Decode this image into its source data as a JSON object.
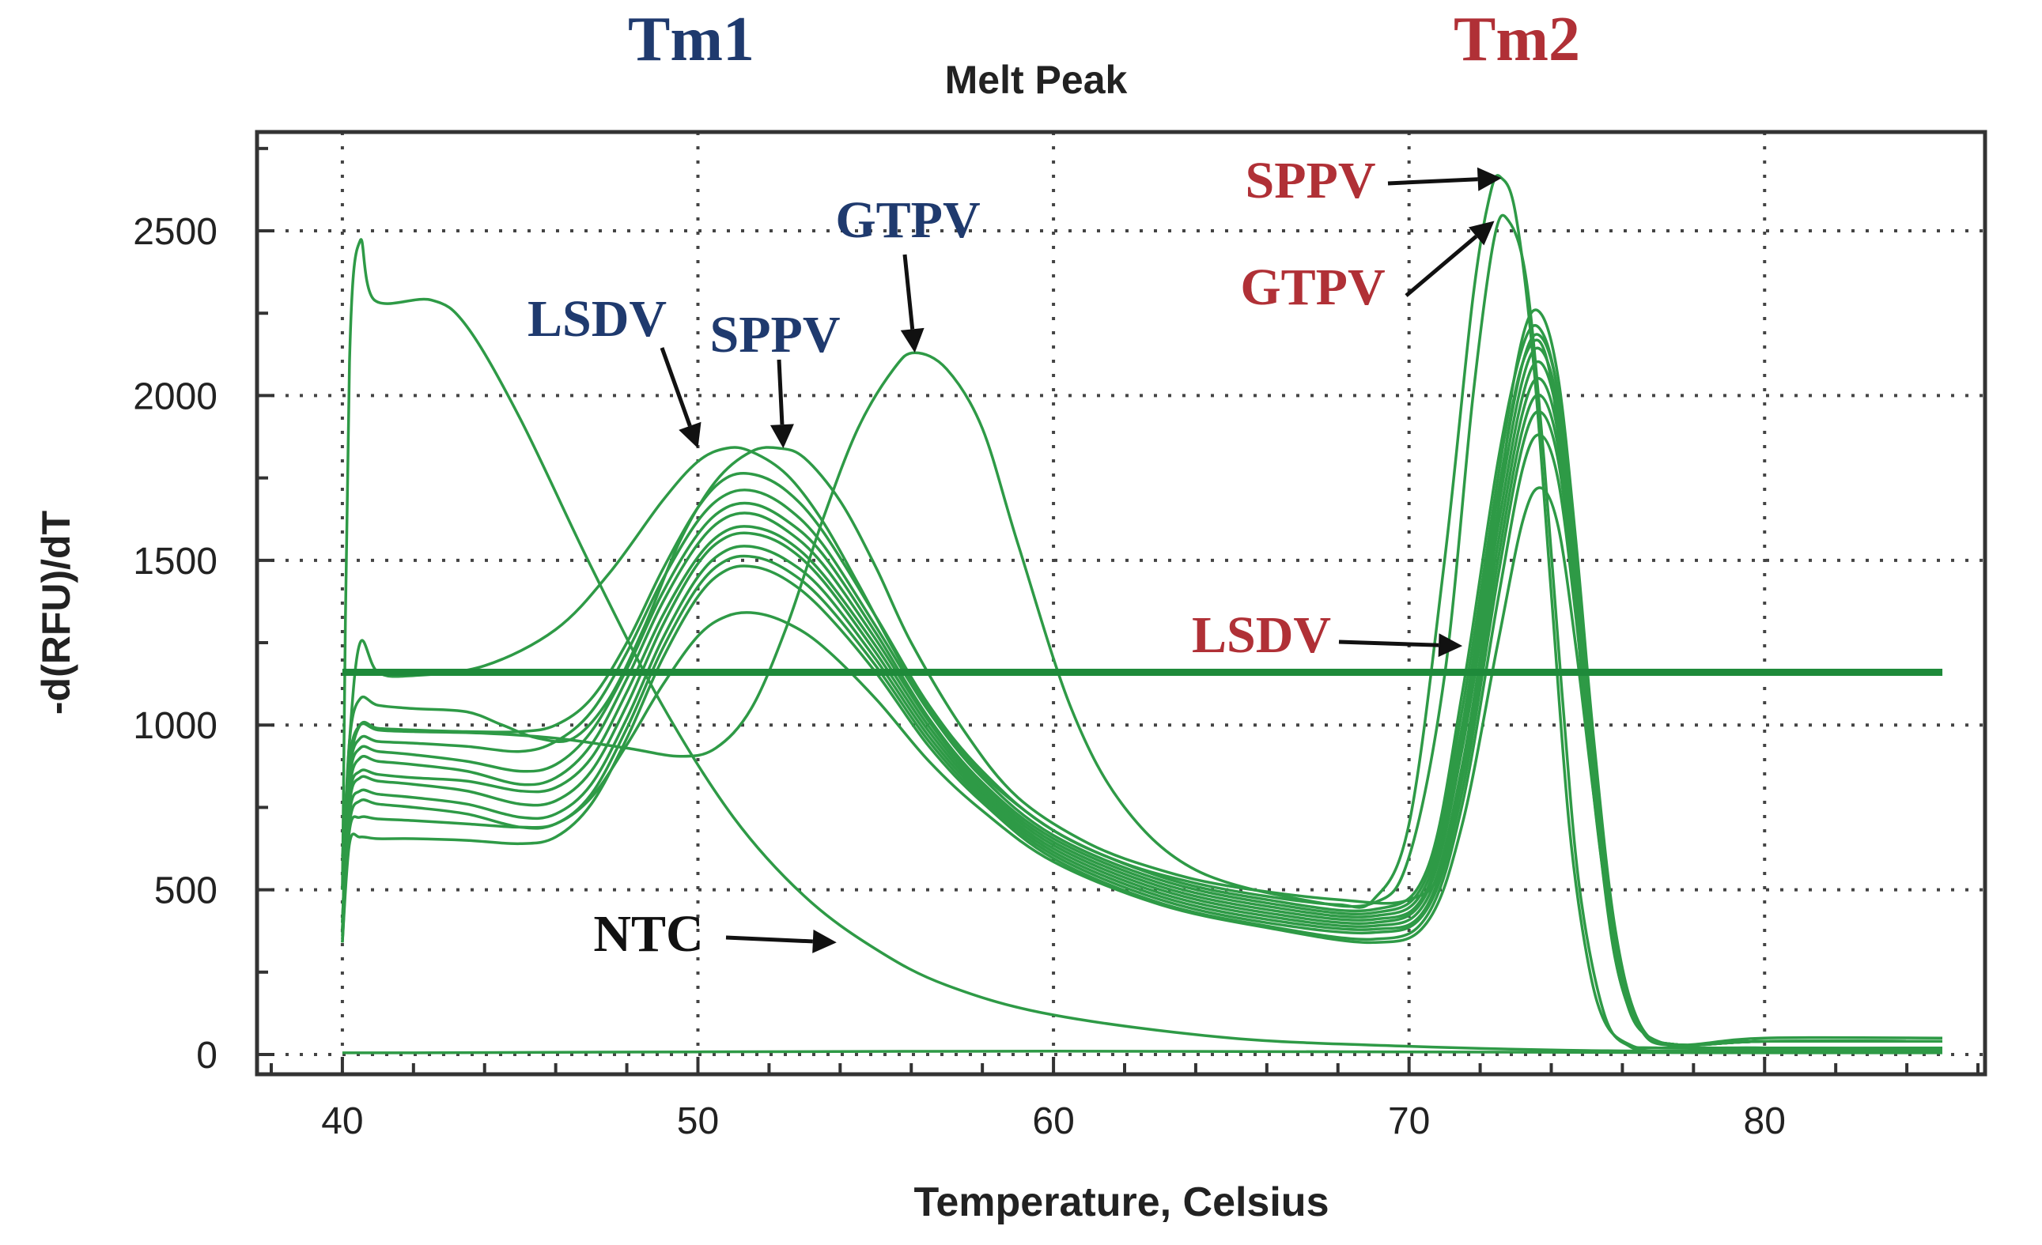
{
  "chart_data": {
    "type": "line",
    "title": "Melt Peak",
    "xlabel": "Temperature, Celsius",
    "ylabel": "-d(RFU)/dT",
    "xlim": [
      37.6,
      86.2
    ],
    "ylim": [
      -60,
      2800
    ],
    "xticks": [
      40,
      50,
      60,
      70,
      80
    ],
    "yticks": [
      0,
      500,
      1000,
      1500,
      2000,
      2500
    ],
    "xtick_labels": [
      "40",
      "50",
      "60",
      "70",
      "80"
    ],
    "ytick_labels": [
      "0",
      "500",
      "1000",
      "1500",
      "2000",
      "2500"
    ],
    "grid": true,
    "line_color": "#2e9a46",
    "threshold_color": "#1e8a3a",
    "threshold": 1160,
    "header_labels": [
      {
        "text": "Tm1",
        "color": "#1f3a6e"
      },
      {
        "text": "Tm2",
        "color": "#b03036"
      }
    ],
    "annotations": [
      {
        "text": "LSDV",
        "color": "#1f3a6e",
        "x": 50.0,
        "y": 1840
      },
      {
        "text": "SPPV",
        "color": "#1f3a6e",
        "x": 52.4,
        "y": 1840
      },
      {
        "text": "GTPV",
        "color": "#1f3a6e",
        "x": 56.1,
        "y": 2130
      },
      {
        "text": "NTC",
        "color": "#111111",
        "x": 53.9,
        "y": 340
      },
      {
        "text": "SPPV",
        "color": "#b03036",
        "x": 72.6,
        "y": 2660
      },
      {
        "text": "GTPV",
        "color": "#b03036",
        "x": 72.4,
        "y": 2530
      },
      {
        "text": "LSDV",
        "color": "#b03036",
        "x": 71.5,
        "y": 1240
      }
    ],
    "series": [
      {
        "x": [
          40.0,
          40.2,
          40.5,
          40.9,
          42.5,
          43.5,
          45.0,
          47.0,
          49.0,
          51.0,
          53.0,
          55.0,
          57.0,
          60.0,
          65.0,
          70.0,
          75.0,
          80.0,
          85.0
        ],
        "y": [
          500,
          2100,
          2470,
          2290,
          2290,
          2210,
          1930,
          1480,
          1060,
          720,
          480,
          320,
          210,
          120,
          50,
          25,
          12,
          10,
          10
        ]
      },
      {
        "x": [
          40.0,
          40.2,
          40.5,
          41.0,
          42.0,
          44.0,
          46.0,
          48.0,
          49.5,
          50.5,
          51.5,
          52.5,
          53.5,
          54.5,
          55.5,
          56.1,
          57.0,
          58.0,
          59.0,
          60.5,
          62.0,
          64.0,
          67.0,
          69.0,
          70.0,
          71.0,
          71.8,
          72.4,
          72.8,
          73.3,
          73.8,
          74.3,
          74.8,
          75.5,
          76.2,
          77.0,
          80.0,
          85.0
        ],
        "y": [
          600,
          900,
          1000,
          985,
          980,
          975,
          960,
          930,
          905,
          930,
          1050,
          1300,
          1620,
          1900,
          2080,
          2130,
          2080,
          1900,
          1550,
          1050,
          750,
          560,
          470,
          460,
          600,
          1150,
          2000,
          2480,
          2530,
          2350,
          1800,
          1100,
          500,
          120,
          25,
          20,
          20,
          18
        ]
      },
      {
        "x": [
          40.0,
          40.2,
          40.5,
          41.0,
          42.0,
          44.0,
          46.0,
          47.5,
          49.0,
          50.0,
          50.8,
          51.5,
          52.5,
          53.5,
          54.5,
          55.5,
          56.5,
          58.0,
          60.0,
          62.0,
          64.0,
          66.0,
          68.0,
          69.0,
          70.0,
          71.0,
          71.8,
          72.3,
          72.6,
          73.0,
          73.5,
          74.0,
          74.5,
          75.0,
          75.5,
          76.2,
          77.0,
          80.0,
          85.0
        ],
        "y": [
          500,
          950,
          1250,
          1160,
          1150,
          1180,
          1290,
          1460,
          1680,
          1800,
          1840,
          1830,
          1760,
          1620,
          1430,
          1230,
          1050,
          850,
          680,
          580,
          520,
          480,
          455,
          470,
          700,
          1500,
          2300,
          2620,
          2660,
          2550,
          2100,
          1400,
          700,
          300,
          100,
          30,
          20,
          18,
          15
        ]
      },
      {
        "x": [
          40.0,
          40.2,
          40.5,
          41.0,
          42.0,
          43.5,
          44.5,
          45.5,
          46.5,
          47.5,
          48.5,
          49.5,
          50.5,
          51.5,
          52.3,
          53.0,
          54.0,
          55.0,
          56.0,
          57.5,
          59.0,
          61.0,
          63.0,
          65.0,
          68.0,
          70.0,
          71.0,
          72.0,
          72.8,
          73.4,
          73.9,
          74.4,
          74.9,
          75.4,
          76.0,
          77.0,
          80.0,
          85.0
        ],
        "y": [
          500,
          950,
          1080,
          1060,
          1050,
          1040,
          1000,
          960,
          960,
          1080,
          1300,
          1560,
          1740,
          1830,
          1840,
          1810,
          1680,
          1480,
          1250,
          980,
          780,
          640,
          560,
          510,
          470,
          470,
          600,
          1200,
          1900,
          2150,
          2100,
          1700,
          1100,
          600,
          200,
          40,
          20,
          20
        ]
      },
      {
        "x": [
          40.0,
          40.2,
          40.5,
          41.0,
          42.0,
          43.5,
          45.0,
          46.0,
          47.0,
          48.0,
          49.0,
          50.0,
          50.8,
          51.6,
          52.5,
          53.5,
          55.0,
          56.5,
          58.0,
          60.0,
          63.0,
          66.0,
          69.0,
          70.5,
          71.5,
          72.5,
          73.2,
          73.7,
          74.2,
          74.7,
          75.2,
          75.8,
          76.5,
          77.5,
          80.0,
          85.0
        ],
        "y": [
          400,
          850,
          1000,
          990,
          985,
          980,
          980,
          1000,
          1080,
          1250,
          1470,
          1660,
          1750,
          1760,
          1710,
          1590,
          1330,
          1060,
          860,
          680,
          540,
          470,
          440,
          560,
          1100,
          1800,
          2150,
          2200,
          2000,
          1500,
          900,
          350,
          80,
          25,
          20,
          20
        ]
      },
      {
        "x": [
          40.0,
          40.2,
          40.5,
          41.0,
          42.0,
          43.5,
          45.0,
          46.0,
          47.0,
          48.0,
          49.0,
          50.0,
          50.8,
          51.6,
          52.5,
          53.5,
          55.0,
          56.5,
          58.0,
          60.0,
          63.0,
          66.0,
          69.0,
          70.5,
          71.5,
          72.5,
          73.2,
          73.7,
          74.2,
          74.7,
          75.2,
          75.8,
          76.5,
          77.5,
          80.0,
          85.0
        ],
        "y": [
          400,
          850,
          960,
          950,
          945,
          935,
          920,
          950,
          1040,
          1220,
          1440,
          1620,
          1700,
          1710,
          1660,
          1550,
          1300,
          1040,
          840,
          665,
          530,
          460,
          430,
          540,
          1050,
          1750,
          2180,
          2250,
          2050,
          1550,
          950,
          380,
          90,
          30,
          50,
          50
        ]
      },
      {
        "x": [
          40.0,
          40.2,
          40.5,
          41.0,
          42.0,
          43.5,
          45.0,
          46.0,
          47.0,
          48.0,
          49.0,
          50.0,
          50.8,
          51.6,
          52.5,
          53.5,
          55.0,
          56.5,
          58.0,
          60.0,
          63.0,
          66.0,
          69.0,
          70.5,
          71.5,
          72.5,
          73.2,
          73.7,
          74.2,
          74.7,
          75.2,
          75.8,
          76.5,
          77.5,
          80.0,
          85.0
        ],
        "y": [
          400,
          830,
          930,
          920,
          910,
          890,
          860,
          880,
          980,
          1170,
          1400,
          1580,
          1660,
          1670,
          1620,
          1520,
          1280,
          1020,
          825,
          655,
          520,
          450,
          420,
          520,
          1000,
          1700,
          2100,
          2180,
          2000,
          1500,
          920,
          360,
          90,
          30,
          40,
          40
        ]
      },
      {
        "x": [
          40.0,
          40.2,
          40.5,
          41.0,
          42.0,
          43.5,
          45.0,
          46.0,
          47.0,
          48.0,
          49.0,
          50.0,
          50.8,
          51.6,
          52.5,
          53.5,
          55.0,
          56.5,
          58.0,
          60.0,
          63.0,
          66.0,
          69.0,
          70.5,
          71.5,
          72.5,
          73.2,
          73.7,
          74.2,
          74.7,
          75.2,
          75.8,
          76.5,
          77.5,
          80.0,
          85.0
        ],
        "y": [
          380,
          800,
          900,
          890,
          880,
          860,
          820,
          840,
          940,
          1140,
          1370,
          1550,
          1630,
          1640,
          1590,
          1490,
          1260,
          1010,
          815,
          645,
          510,
          440,
          410,
          500,
          960,
          1650,
          2050,
          2140,
          1960,
          1470,
          900,
          350,
          85,
          30,
          40,
          40
        ]
      },
      {
        "x": [
          40.0,
          40.2,
          40.5,
          41.0,
          42.0,
          43.5,
          45.0,
          46.0,
          47.0,
          48.0,
          49.0,
          50.0,
          50.8,
          51.6,
          52.5,
          53.5,
          55.0,
          56.5,
          58.0,
          60.0,
          63.0,
          66.0,
          69.0,
          70.5,
          71.5,
          72.5,
          73.2,
          73.7,
          74.2,
          74.7,
          75.2,
          75.8,
          76.5,
          77.5,
          80.0,
          85.0
        ],
        "y": [
          380,
          780,
          860,
          850,
          840,
          830,
          800,
          810,
          900,
          1100,
          1330,
          1510,
          1590,
          1600,
          1560,
          1460,
          1240,
          995,
          805,
          635,
          500,
          430,
          400,
          490,
          930,
          1600,
          2000,
          2100,
          1920,
          1440,
          880,
          340,
          85,
          30,
          40,
          40
        ]
      },
      {
        "x": [
          40.0,
          40.2,
          40.5,
          41.0,
          42.0,
          43.5,
          45.0,
          46.0,
          47.0,
          48.0,
          49.0,
          50.0,
          50.8,
          51.6,
          52.5,
          53.5,
          55.0,
          56.5,
          58.0,
          60.0,
          63.0,
          66.0,
          69.0,
          70.5,
          71.5,
          72.5,
          73.2,
          73.7,
          74.2,
          74.7,
          75.2,
          75.8,
          76.5,
          77.5,
          80.0,
          85.0
        ],
        "y": [
          370,
          760,
          840,
          830,
          820,
          800,
          760,
          770,
          860,
          1060,
          1300,
          1490,
          1570,
          1580,
          1540,
          1440,
          1220,
          980,
          795,
          625,
          490,
          420,
          390,
          470,
          880,
          1550,
          1950,
          2050,
          1880,
          1420,
          870,
          330,
          80,
          30,
          40,
          40
        ]
      },
      {
        "x": [
          40.0,
          40.2,
          40.5,
          41.0,
          42.0,
          43.5,
          45.0,
          46.0,
          47.0,
          48.0,
          49.0,
          50.0,
          50.8,
          51.6,
          52.5,
          53.5,
          55.0,
          56.5,
          58.0,
          60.0,
          63.0,
          66.0,
          69.0,
          70.5,
          71.5,
          72.5,
          73.2,
          73.7,
          74.2,
          74.7,
          75.2,
          75.8,
          76.5,
          77.5,
          80.0,
          85.0
        ],
        "y": [
          360,
          730,
          800,
          790,
          780,
          760,
          720,
          730,
          820,
          1020,
          1260,
          1450,
          1530,
          1540,
          1500,
          1410,
          1200,
          965,
          785,
          615,
          480,
          410,
          380,
          450,
          840,
          1500,
          1900,
          2000,
          1840,
          1390,
          860,
          320,
          80,
          30,
          40,
          40
        ]
      },
      {
        "x": [
          40.0,
          40.2,
          40.5,
          41.0,
          42.0,
          43.5,
          45.0,
          46.0,
          47.0,
          48.0,
          49.0,
          50.0,
          50.8,
          51.6,
          52.5,
          53.5,
          55.0,
          56.5,
          58.0,
          60.0,
          63.0,
          66.0,
          69.0,
          70.5,
          71.5,
          72.5,
          73.2,
          73.7,
          74.2,
          74.7,
          75.2,
          75.8,
          76.5,
          77.5,
          80.0,
          85.0
        ],
        "y": [
          350,
          700,
          770,
          760,
          750,
          730,
          690,
          700,
          790,
          990,
          1230,
          1420,
          1500,
          1510,
          1470,
          1380,
          1180,
          950,
          775,
          605,
          470,
          400,
          370,
          440,
          800,
          1450,
          1850,
          1950,
          1800,
          1360,
          850,
          310,
          80,
          30,
          40,
          40
        ]
      },
      {
        "x": [
          40.0,
          40.2,
          40.5,
          41.0,
          42.0,
          43.5,
          45.0,
          46.0,
          47.0,
          48.0,
          49.0,
          50.0,
          50.8,
          51.6,
          52.5,
          53.5,
          55.0,
          56.5,
          58.0,
          60.0,
          63.0,
          66.0,
          69.0,
          70.5,
          71.5,
          72.5,
          73.2,
          73.7,
          74.2,
          74.7,
          75.2,
          75.8,
          76.5,
          77.5,
          80.0,
          85.0
        ],
        "y": [
          340,
          640,
          660,
          655,
          655,
          650,
          640,
          660,
          760,
          960,
          1200,
          1390,
          1470,
          1480,
          1440,
          1350,
          1160,
          935,
          765,
          595,
          460,
          390,
          350,
          420,
          760,
          1380,
          1780,
          1880,
          1740,
          1320,
          830,
          300,
          80,
          30,
          40,
          40
        ]
      },
      {
        "x": [
          40.0,
          40.2,
          40.5,
          41.0,
          42.0,
          43.5,
          45.0,
          46.0,
          47.0,
          48.0,
          49.0,
          50.0,
          50.8,
          51.6,
          52.5,
          53.5,
          55.0,
          56.5,
          58.0,
          60.0,
          63.0,
          66.0,
          69.0,
          70.5,
          71.5,
          72.5,
          73.2,
          73.7,
          74.2,
          74.7,
          75.2,
          75.8,
          76.5,
          77.5,
          80.0,
          85.0
        ],
        "y": [
          340,
          680,
          720,
          715,
          710,
          700,
          690,
          700,
          780,
          940,
          1120,
          1270,
          1330,
          1340,
          1310,
          1240,
          1080,
          890,
          740,
          585,
          455,
          385,
          340,
          400,
          700,
          1250,
          1620,
          1720,
          1600,
          1230,
          780,
          290,
          80,
          30,
          40,
          40
        ]
      },
      {
        "x": [
          40.0,
          42.0,
          50.0,
          60.0,
          70.0,
          80.0,
          85.0
        ],
        "y": [
          5,
          5,
          8,
          10,
          8,
          5,
          5
        ]
      }
    ]
  }
}
